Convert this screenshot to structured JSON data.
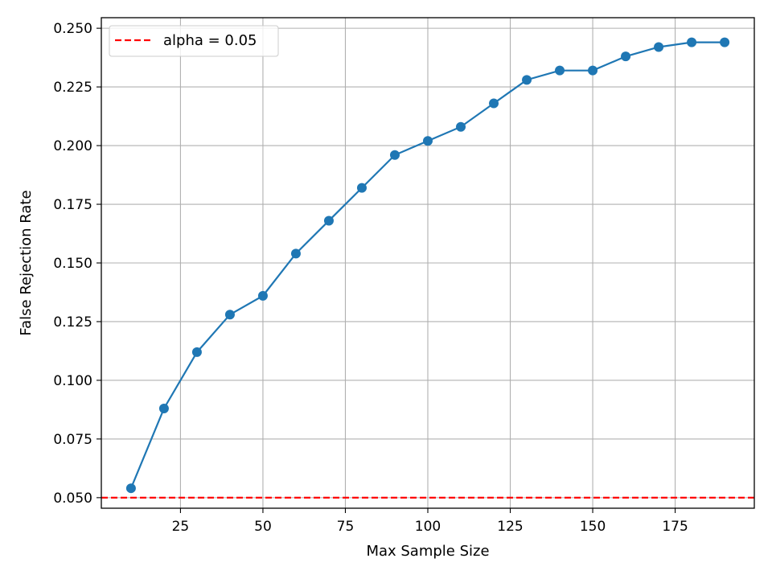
{
  "chart_data": {
    "type": "line",
    "title": "",
    "xlabel": "Max Sample Size",
    "ylabel": "False Rejection Rate",
    "xlim": [
      1,
      199
    ],
    "ylim": [
      0.0455,
      0.2545
    ],
    "xticks": [
      25,
      50,
      75,
      100,
      125,
      150,
      175
    ],
    "xtick_labels": [
      "25",
      "50",
      "75",
      "100",
      "125",
      "150",
      "175"
    ],
    "yticks": [
      0.05,
      0.075,
      0.1,
      0.125,
      0.15,
      0.175,
      0.2,
      0.225,
      0.25
    ],
    "ytick_labels": [
      "0.050",
      "0.075",
      "0.100",
      "0.125",
      "0.150",
      "0.175",
      "0.200",
      "0.225",
      "0.250"
    ],
    "grid": true,
    "legend_position": "top-left",
    "series": [
      {
        "color": "#1f77b4",
        "marker": "circle",
        "x": [
          10,
          20,
          30,
          40,
          50,
          60,
          70,
          80,
          90,
          100,
          110,
          120,
          130,
          140,
          150,
          160,
          170,
          180,
          190
        ],
        "y": [
          0.054,
          0.088,
          0.112,
          0.128,
          0.136,
          0.154,
          0.168,
          0.182,
          0.196,
          0.202,
          0.208,
          0.218,
          0.228,
          0.232,
          0.232,
          0.238,
          0.242,
          0.244,
          0.244
        ]
      }
    ],
    "reference_lines": [
      {
        "name": "alpha = 0.05",
        "y": 0.05,
        "color": "#ff0000",
        "style": "dashed"
      }
    ]
  }
}
